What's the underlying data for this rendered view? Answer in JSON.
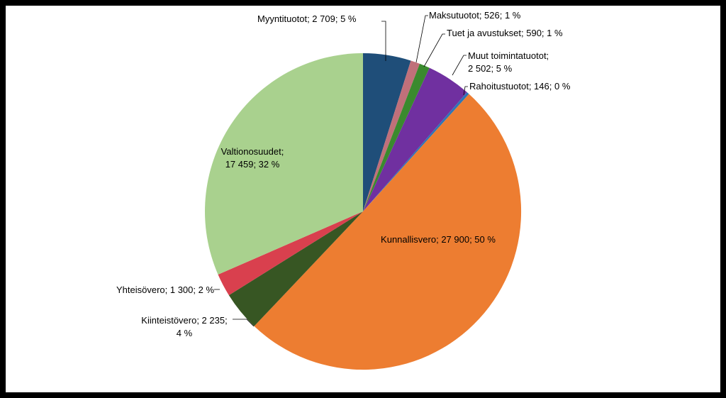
{
  "chart_data": {
    "type": "pie",
    "title": "",
    "start_angle_deg": 0,
    "direction": "clockwise",
    "slices": [
      {
        "name": "Myyntituotot",
        "value": 2709,
        "percent": 5,
        "label_lines": [
          "Myyntituotot; 2 709; 5 %"
        ],
        "color": "#1f4e79"
      },
      {
        "name": "Maksutuotot",
        "value": 526,
        "percent": 1,
        "label_lines": [
          "Maksutuotot; 526; 1 %"
        ],
        "color": "#c0707a"
      },
      {
        "name": "Tuet ja avustukset",
        "value": 590,
        "percent": 1,
        "label_lines": [
          "Tuet ja avustukset; 590; 1 %"
        ],
        "color": "#3a8a2e"
      },
      {
        "name": "Muut toimintatuotot",
        "value": 2502,
        "percent": 5,
        "label_lines": [
          "Muut toimintatuotot;",
          "2 502; 5 %"
        ],
        "color": "#7030a0"
      },
      {
        "name": "Rahoitustuotot",
        "value": 146,
        "percent": 0,
        "label_lines": [
          "Rahoitustuotot; 146; 0 %"
        ],
        "color": "#2e75b6"
      },
      {
        "name": "Kunnallisvero",
        "value": 27900,
        "percent": 50,
        "label_lines": [
          "Kunnallisvero; 27 900; 50 %"
        ],
        "color": "#ed7d31"
      },
      {
        "name": "Kiinteistövero",
        "value": 2235,
        "percent": 4,
        "label_lines": [
          "Kiinteistövero; 2 235;",
          "4 %"
        ],
        "color": "#375623"
      },
      {
        "name": "Yhteisövero",
        "value": 1300,
        "percent": 2,
        "label_lines": [
          "Yhteisövero; 1 300; 2 %"
        ],
        "color": "#d9404e"
      },
      {
        "name": "Valtionosuudet",
        "value": 17459,
        "percent": 32,
        "label_lines": [
          "Valtionosuudet;",
          "17 459; 32 %"
        ],
        "color": "#a9d18e"
      }
    ]
  }
}
